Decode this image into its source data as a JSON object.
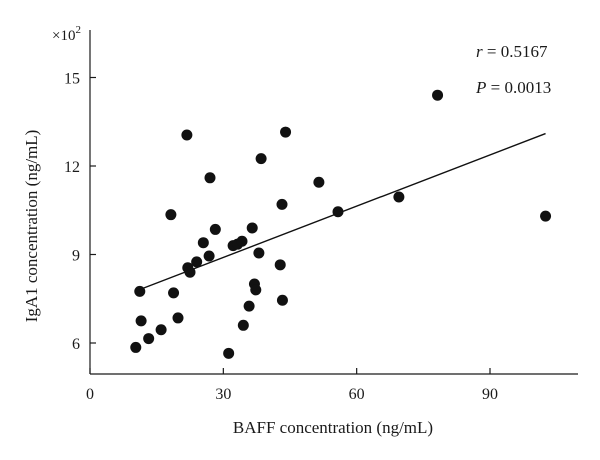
{
  "chart_data": {
    "type": "scatter",
    "xlabel": "BAFF concentration (ng/mL)",
    "ylabel": "IgA1 concentration (ng/mL)",
    "y_multiplier": {
      "base": "×10",
      "exp": "2"
    },
    "xlim": [
      0,
      112
    ],
    "ylim": [
      5,
      16.2
    ],
    "xticks": [
      0,
      30,
      60,
      90
    ],
    "yticks": [
      6,
      9,
      12,
      15
    ],
    "grid": false,
    "annotations": {
      "r_symbol": "r",
      "r_value": " = 0.5167",
      "p_symbol": "P",
      "p_value": " = 0.0013"
    },
    "fit_line": {
      "x": [
        11,
        102.5
      ],
      "y": [
        7.8,
        13.1
      ]
    },
    "points": [
      {
        "x": 10.3,
        "y": 5.85
      },
      {
        "x": 11.2,
        "y": 7.75
      },
      {
        "x": 11.5,
        "y": 6.75
      },
      {
        "x": 13.2,
        "y": 6.15
      },
      {
        "x": 16.0,
        "y": 6.45
      },
      {
        "x": 18.2,
        "y": 10.35
      },
      {
        "x": 18.8,
        "y": 7.7
      },
      {
        "x": 19.8,
        "y": 6.85
      },
      {
        "x": 21.8,
        "y": 13.05
      },
      {
        "x": 22.0,
        "y": 8.55
      },
      {
        "x": 22.5,
        "y": 8.4
      },
      {
        "x": 24.0,
        "y": 8.75
      },
      {
        "x": 25.5,
        "y": 9.4
      },
      {
        "x": 26.8,
        "y": 8.95
      },
      {
        "x": 27.0,
        "y": 11.6
      },
      {
        "x": 28.2,
        "y": 9.85
      },
      {
        "x": 31.2,
        "y": 5.65
      },
      {
        "x": 32.2,
        "y": 9.3
      },
      {
        "x": 33.2,
        "y": 9.35
      },
      {
        "x": 34.2,
        "y": 9.45
      },
      {
        "x": 34.5,
        "y": 6.6
      },
      {
        "x": 35.8,
        "y": 7.25
      },
      {
        "x": 36.5,
        "y": 9.9
      },
      {
        "x": 37.0,
        "y": 8.0
      },
      {
        "x": 37.3,
        "y": 7.8
      },
      {
        "x": 38.0,
        "y": 9.05
      },
      {
        "x": 38.5,
        "y": 12.25
      },
      {
        "x": 42.8,
        "y": 8.65
      },
      {
        "x": 43.2,
        "y": 10.7
      },
      {
        "x": 43.3,
        "y": 7.45
      },
      {
        "x": 44.0,
        "y": 13.15
      },
      {
        "x": 51.5,
        "y": 11.45
      },
      {
        "x": 55.8,
        "y": 10.45
      },
      {
        "x": 69.5,
        "y": 10.95
      },
      {
        "x": 78.2,
        "y": 14.4
      },
      {
        "x": 102.5,
        "y": 10.3
      }
    ]
  }
}
